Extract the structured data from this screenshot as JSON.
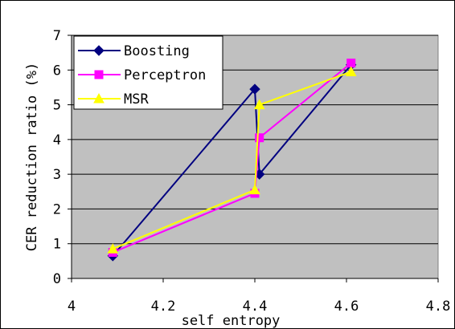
{
  "chart_data": {
    "type": "line",
    "title": "",
    "xlabel": "self entropy",
    "ylabel": "CER reduction ratio (%)",
    "xlim": [
      4,
      4.8
    ],
    "ylim": [
      0,
      7
    ],
    "x_ticks": [
      "4",
      "4.2",
      "4.4",
      "4.6",
      "4.8"
    ],
    "y_ticks": [
      "0",
      "1",
      "2",
      "3",
      "4",
      "5",
      "6",
      "7"
    ],
    "x_tick_values": [
      4,
      4.2,
      4.4,
      4.6,
      4.8
    ],
    "y_tick_values": [
      0,
      1,
      2,
      3,
      4,
      5,
      6,
      7
    ],
    "grid": "horizontal",
    "legend_position": "top-left",
    "plot_background": "#c0c0c0",
    "series": [
      {
        "name": "Boosting",
        "color": "#000080",
        "marker": "diamond",
        "points": [
          [
            4.09,
            0.65
          ],
          [
            4.4,
            5.45
          ],
          [
            4.41,
            3.0
          ],
          [
            4.61,
            6.15
          ]
        ]
      },
      {
        "name": "Perceptron",
        "color": "#ff00ff",
        "marker": "square",
        "points": [
          [
            4.09,
            0.75
          ],
          [
            4.4,
            2.45
          ],
          [
            4.41,
            4.05
          ],
          [
            4.61,
            6.2
          ]
        ]
      },
      {
        "name": "MSR",
        "color": "#ffff00",
        "marker": "triangle",
        "points": [
          [
            4.09,
            0.85
          ],
          [
            4.4,
            2.55
          ],
          [
            4.41,
            5.0
          ],
          [
            4.61,
            5.95
          ]
        ]
      }
    ]
  }
}
